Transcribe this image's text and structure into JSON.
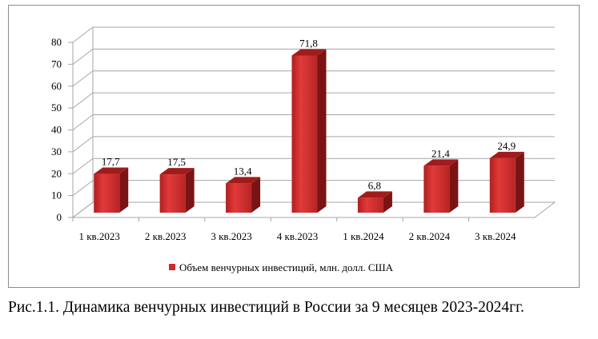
{
  "chart_data": {
    "type": "bar",
    "style": "3d-column",
    "title": "",
    "xlabel": "",
    "ylabel": "",
    "categories": [
      "1 кв.2023",
      "2 кв.2023",
      "3 кв.2023",
      "4 кв.2023",
      "1 кв.2024",
      "2 кв.2024",
      "3 кв.2024"
    ],
    "series": [
      {
        "name": "Объем венчурных инвестиций, млн. долл. США",
        "values": [
          17.7,
          17.5,
          13.4,
          71.8,
          6.8,
          21.4,
          24.9
        ],
        "labels": [
          "17,7",
          "17,5",
          "13,4",
          "71,8",
          "6,8",
          "21,4",
          "24,9"
        ],
        "color": "#cc2b2b"
      }
    ],
    "ylim": [
      0,
      80
    ],
    "yticks": [
      0,
      10,
      20,
      30,
      40,
      50,
      60,
      70,
      80
    ],
    "grid": true,
    "legend_position": "bottom"
  },
  "caption": "Рис.1.1. Динамика венчурных инвестиций в России за 9 месяцев 2023-2024гг."
}
